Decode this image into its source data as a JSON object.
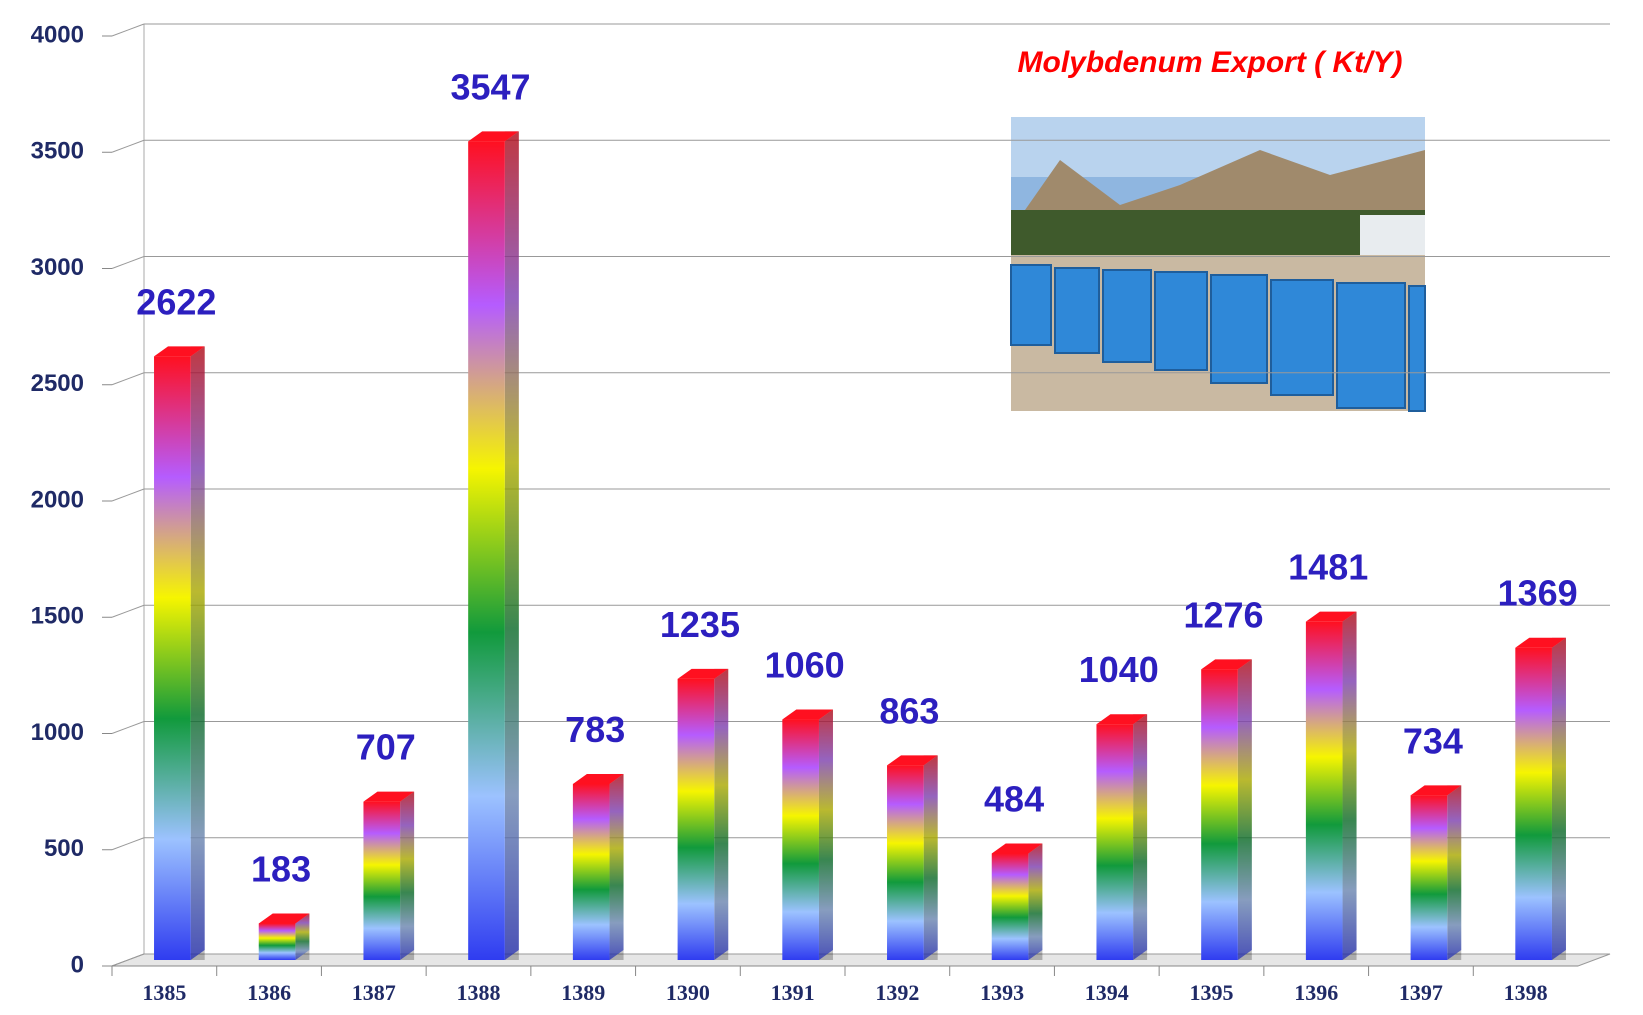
{
  "chart_data": {
    "type": "bar3d",
    "title": "Molybdenum Export ( Kt/Y)",
    "categories": [
      "1385",
      "1386",
      "1387",
      "1388",
      "1389",
      "1390",
      "1391",
      "1392",
      "1393",
      "1394",
      "1395",
      "1396",
      "1397",
      "1398"
    ],
    "values": [
      2622,
      183,
      707,
      3547,
      783,
      1235,
      1060,
      863,
      484,
      1040,
      1276,
      1481,
      734,
      1369
    ],
    "gradient": [
      "#2f3cf0",
      "#9cc2ff",
      "#119a3c",
      "#f6f500",
      "#b55cff",
      "#ff1020"
    ],
    "label_color": "#2c1fbf",
    "ylim": [
      0,
      4000
    ],
    "yticks": [
      0,
      500,
      1000,
      1500,
      2000,
      2500,
      3000,
      3500,
      4000
    ],
    "grid": true
  }
}
